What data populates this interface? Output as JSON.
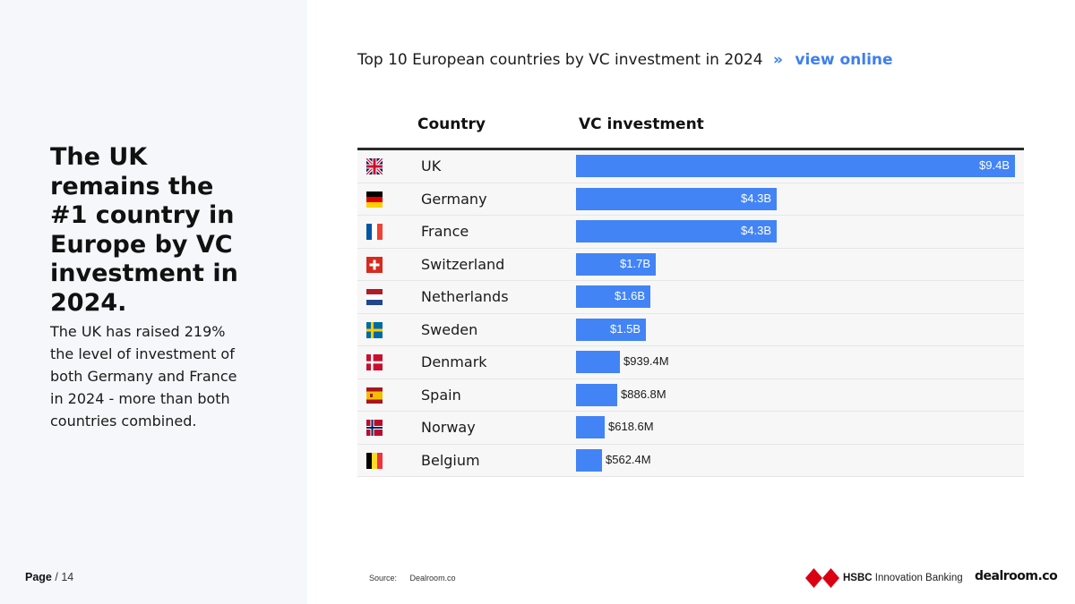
{
  "left": {
    "headline": "The UK remains the #1 country in Europe by VC investment in 2024.",
    "body": "The UK has raised 219% the level of investment of both Germany and France in 2024 - more than both countries combined.",
    "page_label": "Page",
    "page_total": "/ 14"
  },
  "chart_title": {
    "text": "Top 10 European countries by VC investment in 2024",
    "separator": "»",
    "link": "view online"
  },
  "chart_data": {
    "type": "bar",
    "orientation": "horizontal",
    "columns": [
      "Country",
      "VC investment"
    ],
    "unit": "USD millions",
    "categories": [
      "UK",
      "Germany",
      "France",
      "Switzerland",
      "Netherlands",
      "Sweden",
      "Denmark",
      "Spain",
      "Norway",
      "Belgium"
    ],
    "values": [
      9400,
      4300,
      4300,
      1700,
      1600,
      1500,
      939.4,
      886.8,
      618.6,
      562.4
    ],
    "labels": [
      "$9.4B",
      "$4.3B",
      "$4.3B",
      "$1.7B",
      "$1.6B",
      "$1.5B",
      "$939.4M",
      "$886.8M",
      "$618.6M",
      "$562.4M"
    ],
    "flags": [
      "flag-uk",
      "flag-germany",
      "flag-france",
      "flag-switzerland",
      "flag-netherlands",
      "flag-sweden",
      "flag-denmark",
      "flag-spain",
      "flag-norway",
      "flag-belgium"
    ],
    "bar_color": "#4284f5",
    "xlim": [
      0,
      9400
    ]
  },
  "footer": {
    "source_label": "Source:",
    "source_value": "Dealroom.co",
    "hsbc_brand": "HSBC",
    "hsbc_suffix": "Innovation Banking",
    "dealroom_logo": "dealroom.co"
  }
}
